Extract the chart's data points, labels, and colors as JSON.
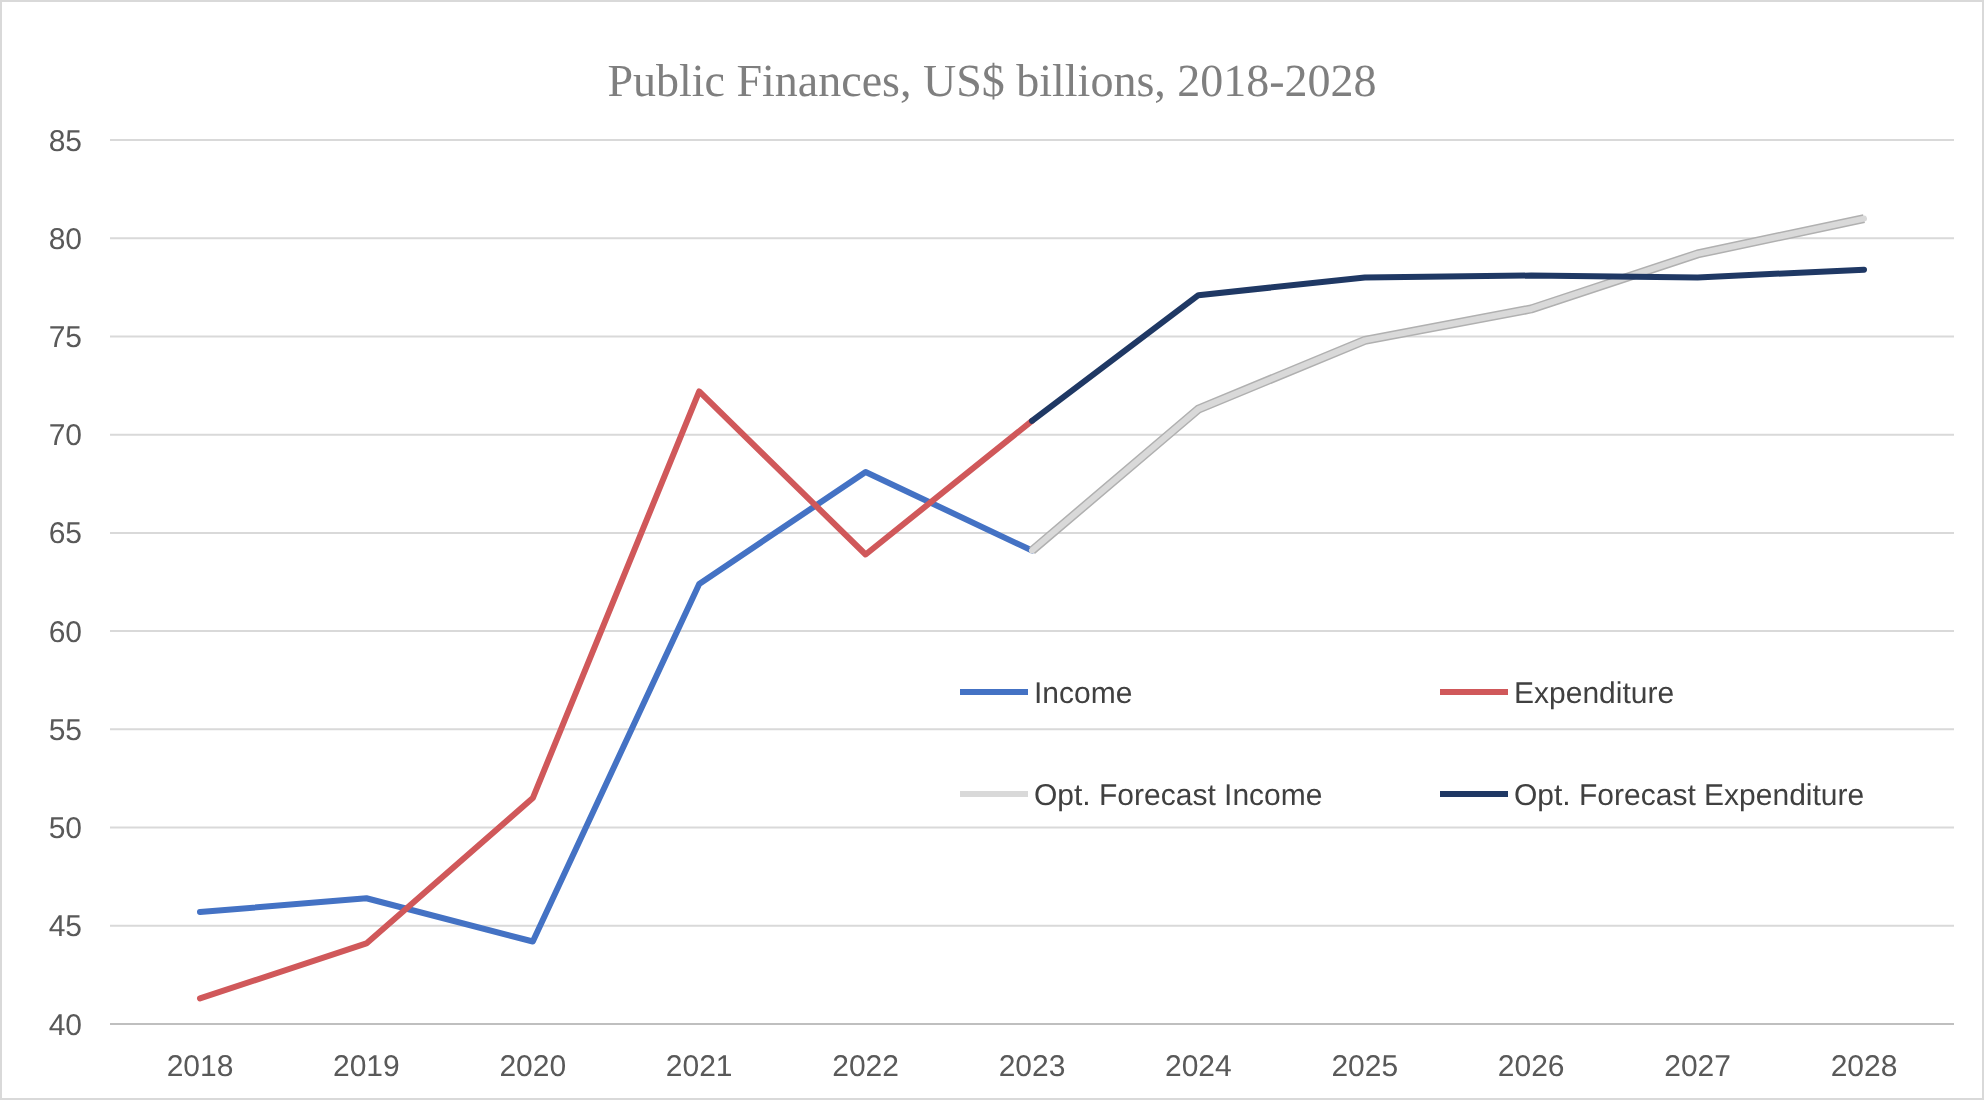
{
  "chart_data": {
    "type": "line",
    "title": "Public Finances, US$ billions, 2018-2028",
    "categories": [
      "2018",
      "2019",
      "2020",
      "2021",
      "2022",
      "2023",
      "2024",
      "2025",
      "2026",
      "2027",
      "2028"
    ],
    "series": [
      {
        "name": "Income",
        "color": "#4472c4",
        "values": [
          45.7,
          46.4,
          44.2,
          62.4,
          68.1,
          64.1,
          null,
          null,
          null,
          null,
          null
        ]
      },
      {
        "name": "Expenditure",
        "color": "#d0585a",
        "values": [
          41.3,
          44.1,
          51.5,
          72.2,
          63.9,
          70.7,
          null,
          null,
          null,
          null,
          null
        ]
      },
      {
        "name": "Opt. Forecast Income",
        "color": "#d9d9d9",
        "values": [
          null,
          null,
          null,
          null,
          null,
          64.1,
          71.3,
          74.8,
          76.4,
          79.2,
          81.0
        ]
      },
      {
        "name": "Opt. Forecast Expenditure",
        "color": "#1f3864",
        "values": [
          null,
          null,
          null,
          null,
          null,
          70.7,
          77.1,
          78.0,
          78.1,
          78.0,
          78.4
        ]
      }
    ],
    "ylim": [
      40,
      85
    ],
    "yticks": [
      40,
      45,
      50,
      55,
      60,
      65,
      70,
      75,
      80,
      85
    ],
    "grid": "y",
    "legend": "right",
    "marker": "none",
    "line_style": "solid"
  }
}
